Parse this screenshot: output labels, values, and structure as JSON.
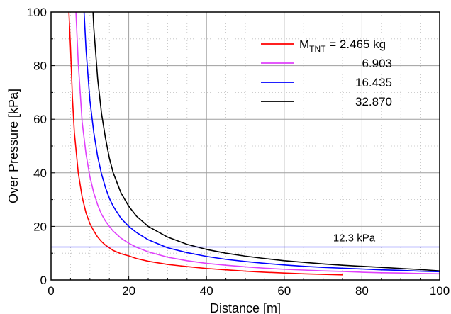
{
  "chart_data": {
    "type": "line",
    "title": "",
    "xlabel": "Distance [m]",
    "ylabel": "Over Pressure [kPa]",
    "xlim": [
      0,
      100
    ],
    "ylim": [
      0,
      100
    ],
    "xticks": [
      0,
      20,
      40,
      60,
      80,
      100
    ],
    "yticks": [
      0,
      20,
      40,
      60,
      80,
      100
    ],
    "x_minor_step": 5,
    "y_minor_step": 10,
    "grid": true,
    "legend_position": "top-right",
    "legend": {
      "prefix": "M",
      "subscript": "TNT",
      "first_suffix": " = 2.465 kg"
    },
    "series": [
      {
        "name": "2.465",
        "label": "2.465 kg",
        "color": "#ff0000",
        "x": [
          4.6,
          5,
          5.5,
          6,
          7,
          8,
          9,
          10,
          11,
          12,
          13,
          14,
          15,
          16,
          18,
          20,
          22,
          25,
          30,
          35,
          40,
          45,
          50,
          55,
          60,
          65,
          70,
          75
        ],
        "y": [
          100,
          87,
          68,
          55,
          40,
          31,
          25,
          21,
          18.3,
          16,
          14.3,
          13,
          12,
          11,
          9.8,
          9,
          8,
          7,
          5.8,
          5,
          4.3,
          3.8,
          3.3,
          2.9,
          2.6,
          2.3,
          2.1,
          1.9
        ]
      },
      {
        "name": "6.903",
        "label": "6.903",
        "color": "#e040fb",
        "x": [
          6.4,
          7,
          8,
          9,
          10,
          11,
          12,
          13,
          14,
          15,
          16,
          18,
          20,
          22,
          25,
          30,
          35,
          40,
          45,
          50,
          55,
          60,
          65,
          70,
          75,
          80,
          85,
          90,
          95,
          100
        ],
        "y": [
          100,
          81,
          59,
          47,
          38.5,
          32.5,
          28,
          24.5,
          22,
          20,
          18.2,
          15.6,
          13.7,
          12.2,
          10.5,
          8.5,
          7.2,
          6.2,
          5.5,
          4.9,
          4.4,
          4,
          3.7,
          3.4,
          3.2,
          2.9,
          2.7,
          2.6,
          2.4,
          2.3
        ]
      },
      {
        "name": "16.435",
        "label": "16.435",
        "color": "#0000ff",
        "x": [
          8.5,
          9,
          10,
          11,
          12,
          13,
          14,
          15,
          16,
          18,
          20,
          22,
          25,
          30,
          35,
          40,
          45,
          50,
          55,
          60,
          65,
          70,
          75,
          80,
          85,
          90,
          95,
          100
        ],
        "y": [
          100,
          86,
          67,
          55,
          46,
          39.5,
          34.5,
          30.5,
          27.5,
          23,
          20,
          17.7,
          15,
          12,
          10.2,
          8.8,
          7.7,
          6.9,
          6.2,
          5.6,
          5.1,
          4.7,
          4.4,
          4.1,
          3.8,
          3.6,
          3.3,
          3.1
        ]
      },
      {
        "name": "32.870",
        "label": "32.870",
        "color": "#000000",
        "x": [
          10.8,
          11,
          12,
          13,
          14,
          15,
          16,
          18,
          20,
          22,
          25,
          30,
          35,
          40,
          45,
          50,
          55,
          60,
          65,
          70,
          75,
          80,
          85,
          90,
          95,
          100
        ],
        "y": [
          100,
          94,
          75,
          62,
          53,
          45.5,
          40,
          32.5,
          27.5,
          23.8,
          20,
          16,
          13.3,
          11.4,
          10,
          8.9,
          8,
          7.2,
          6.6,
          6,
          5.5,
          5.1,
          4.7,
          4.3,
          3.9,
          3.4
        ]
      }
    ],
    "reference_line": {
      "y": 12.3,
      "label": "12.3 kPa",
      "color": "#0000ff"
    }
  }
}
